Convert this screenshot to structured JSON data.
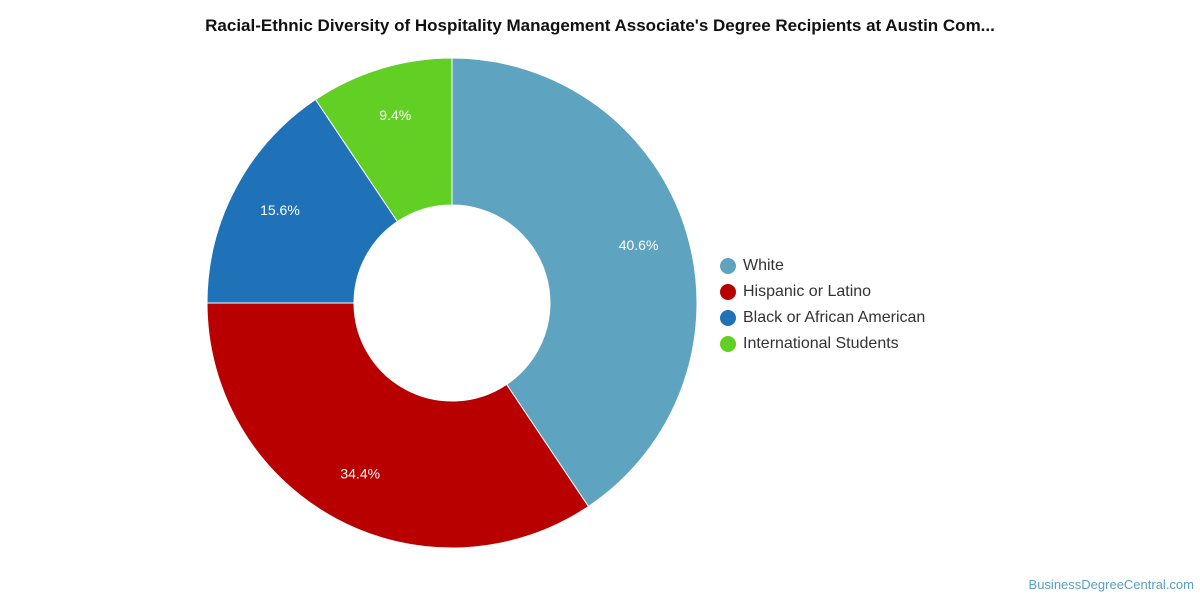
{
  "chart_data": {
    "type": "pie",
    "title": "Racial-Ethnic Diversity of Hospitality Management Associate's Degree Recipients at Austin Com...",
    "donut": true,
    "legend_position": "right",
    "categories": [
      "White",
      "Hispanic or Latino",
      "Black or African American",
      "International Students"
    ],
    "values": [
      40.6,
      34.4,
      15.6,
      9.4
    ],
    "labels": [
      "40.6%",
      "34.4%",
      "15.6%",
      "9.4%"
    ],
    "colors": [
      "#5ea3c0",
      "#b80000",
      "#1f72b8",
      "#62cf24"
    ]
  },
  "source": "BusinessDegreeCentral.com"
}
